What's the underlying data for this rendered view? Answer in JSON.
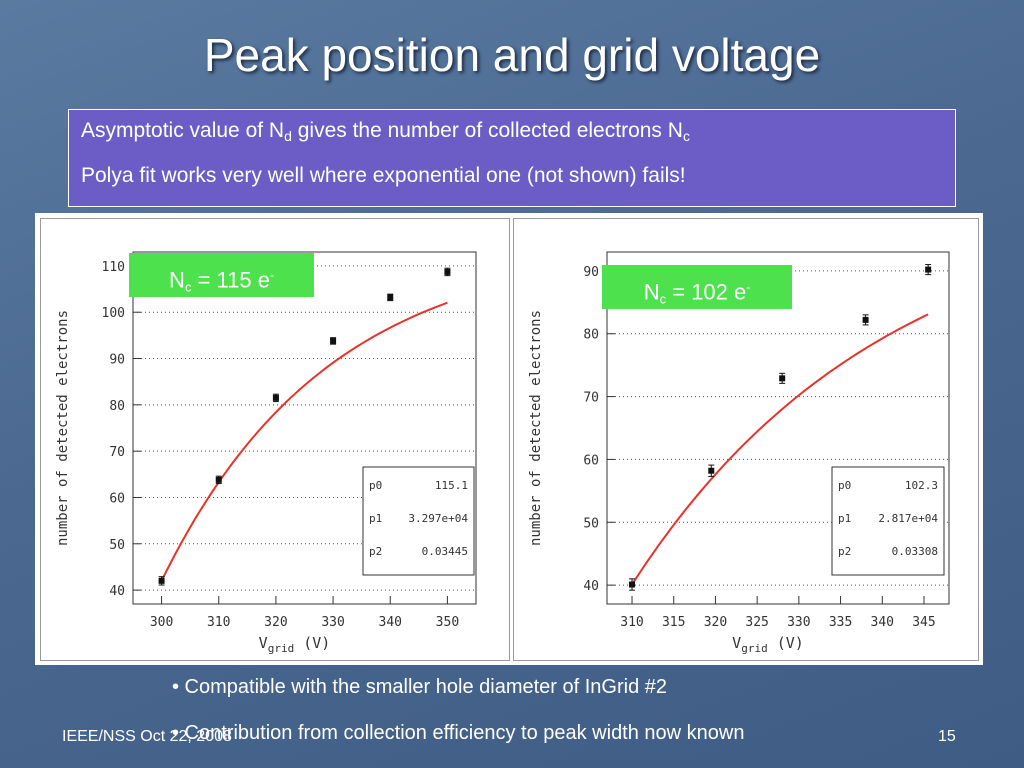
{
  "title": "Peak position and grid voltage",
  "textbox": {
    "line1_pre": "Asymptotic value of N",
    "line1_sub1": "d",
    "line1_mid": " gives the number of collected electrons N",
    "line1_sub2": "c",
    "line2": "Polya fit works very well where exponential one (not shown) fails!"
  },
  "bullets": [
    "• Compatible with the smaller hole diameter of InGrid #2",
    "• Contribution from collection efficiency to peak width now known"
  ],
  "footer": {
    "left": "IEEE/NSS Oct 22, 2008",
    "page": "15"
  },
  "colors": {
    "badge": "#4de24d",
    "textbox": "#6b5cc6",
    "fit_curve": "#e8322a",
    "points": "#111111"
  },
  "chart_data": [
    {
      "type": "scatter",
      "badge": {
        "prefix": "N",
        "sub": "c",
        "value": " = 115 e",
        "sup": "-"
      },
      "xlabel_main": "V",
      "xlabel_sub": "grid",
      "xlabel_unit": " (V)",
      "ylabel": "number of detected electrons",
      "xlim": [
        295,
        355
      ],
      "ylim": [
        37,
        113
      ],
      "xticks": [
        300,
        310,
        320,
        330,
        340,
        350
      ],
      "yticks": [
        40,
        50,
        60,
        70,
        80,
        90,
        100,
        110
      ],
      "grid": "horizontal dotted",
      "points": [
        {
          "x": 300,
          "y": 42.0,
          "err": 0.9
        },
        {
          "x": 310,
          "y": 63.8,
          "err": 0.8
        },
        {
          "x": 320,
          "y": 81.5,
          "err": 0.8
        },
        {
          "x": 330,
          "y": 93.8,
          "err": 0.7
        },
        {
          "x": 340,
          "y": 103.2,
          "err": 0.7
        },
        {
          "x": 350,
          "y": 108.7,
          "err": 0.8
        }
      ],
      "fit": {
        "type": "polya",
        "p0": 115.1,
        "p1": 32970,
        "p2": 0.03445
      },
      "stats": [
        {
          "name": "p0",
          "value": "115.1"
        },
        {
          "name": "p1",
          "value": "3.297e+04"
        },
        {
          "name": "p2",
          "value": "0.03445"
        }
      ]
    },
    {
      "type": "scatter",
      "badge": {
        "prefix": "N",
        "sub": "c",
        "value": " = 102 e",
        "sup": "-"
      },
      "xlabel_main": "V",
      "xlabel_sub": "grid",
      "xlabel_unit": " (V)",
      "ylabel": "number of detected electrons",
      "xlim": [
        307,
        348
      ],
      "ylim": [
        37,
        93
      ],
      "xticks": [
        310,
        315,
        320,
        325,
        330,
        335,
        340,
        345
      ],
      "yticks": [
        40,
        50,
        60,
        70,
        80,
        90
      ],
      "grid": "horizontal dotted",
      "points": [
        {
          "x": 310,
          "y": 40.1,
          "err": 0.9
        },
        {
          "x": 319.5,
          "y": 58.2,
          "err": 0.9
        },
        {
          "x": 328,
          "y": 72.9,
          "err": 0.8
        },
        {
          "x": 338,
          "y": 82.2,
          "err": 0.8
        },
        {
          "x": 345.5,
          "y": 90.2,
          "err": 0.8
        }
      ],
      "fit": {
        "type": "polya",
        "p0": 102.3,
        "p1": 28170,
        "p2": 0.03308
      },
      "stats": [
        {
          "name": "p0",
          "value": "102.3"
        },
        {
          "name": "p1",
          "value": "2.817e+04"
        },
        {
          "name": "p2",
          "value": "0.03308"
        }
      ]
    }
  ]
}
